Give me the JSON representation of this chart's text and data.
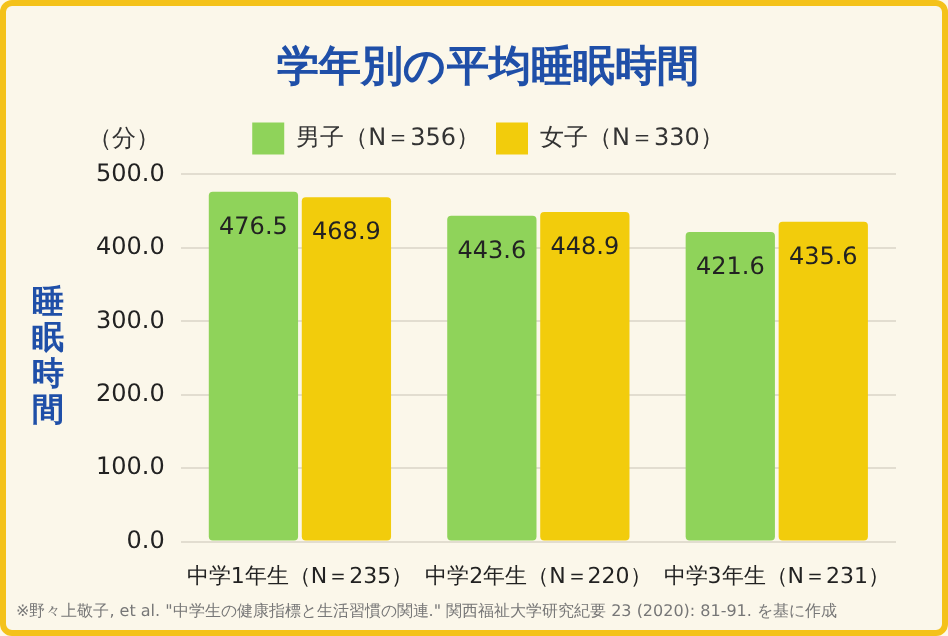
{
  "chart_data": {
    "type": "bar",
    "title": "学年別の平均睡眠時間",
    "ylabel": "睡眠時間",
    "categories": [
      "中学1年生（N＝235）",
      "中学2年生（N＝220）",
      "中学3年生（N＝231）"
    ],
    "series": [
      {
        "name": "男子（N＝356）",
        "color": "#8fd35a",
        "values": [
          476.5,
          443.6,
          421.6
        ]
      },
      {
        "name": "女子（N＝330）",
        "color": "#f2cc0c",
        "values": [
          468.9,
          448.9,
          435.6
        ]
      }
    ],
    "ylim": [
      0,
      500
    ],
    "yticks": [
      {
        "value": 0,
        "label": "0.0"
      },
      {
        "value": 100,
        "label": "100.0"
      },
      {
        "value": 200,
        "label": "200.0"
      },
      {
        "value": 300,
        "label": "300.0"
      },
      {
        "value": 400,
        "label": "400.0"
      },
      {
        "value": 500,
        "label": "500.0"
      }
    ],
    "grid": "y",
    "legend": "top",
    "data_labels": true,
    "annotations": [
      "（分）",
      "※野々上敬子, et al. \"中学生の健康指標と生活習慣の関連.\" 関西福祉大学研究紀要 23 (2020): 81-91. を基に作成"
    ]
  }
}
